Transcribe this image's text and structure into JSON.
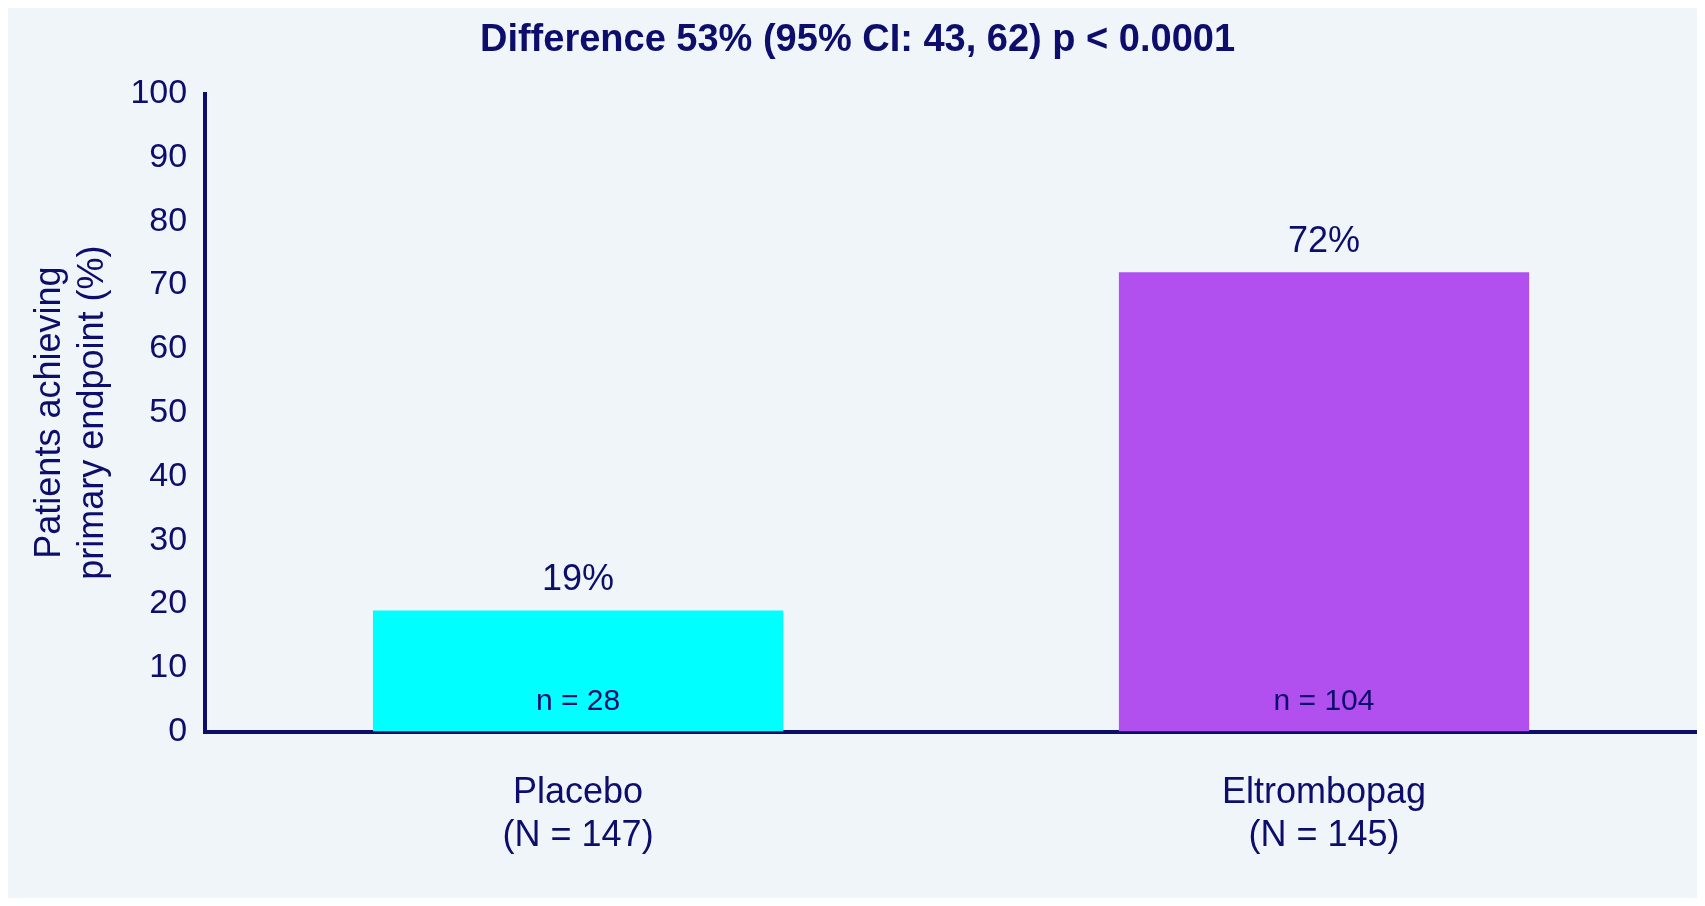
{
  "chart_data": {
    "type": "bar",
    "title": "Difference 53% (95% CI: 43, 62) p < 0.0001",
    "ylabel": "Patients achieving\nprimary endpoint (%)",
    "categories": [
      "Placebo\n(N = 147)",
      "Eltrombopag\n(N = 145)"
    ],
    "values": [
      19,
      72
    ],
    "colors": [
      "#00ffff",
      "#b150ef"
    ],
    "value_labels": [
      "19%",
      "72%"
    ],
    "annotations": [
      "n = 28",
      "n = 104"
    ],
    "ylim": [
      0,
      100
    ],
    "yticks": [
      0,
      10,
      20,
      30,
      40,
      50,
      60,
      70,
      80,
      90,
      100
    ],
    "grid": false,
    "legend": false
  }
}
